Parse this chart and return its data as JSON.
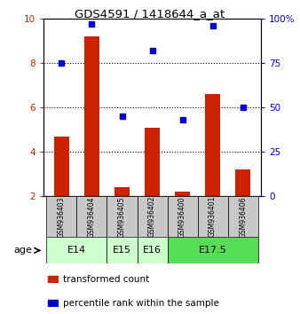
{
  "title": "GDS4591 / 1418644_a_at",
  "samples": [
    "GSM936403",
    "GSM936404",
    "GSM936405",
    "GSM936402",
    "GSM936400",
    "GSM936401",
    "GSM936406"
  ],
  "transformed_count": [
    4.7,
    9.2,
    2.4,
    5.1,
    2.2,
    6.6,
    3.2
  ],
  "percentile_rank": [
    75,
    97,
    45,
    82,
    43,
    96,
    50
  ],
  "ylim_left": [
    2,
    10
  ],
  "ylim_right": [
    0,
    100
  ],
  "yticks_left": [
    2,
    4,
    6,
    8,
    10
  ],
  "yticks_right": [
    0,
    25,
    50,
    75,
    100
  ],
  "ytick_right_labels": [
    "0",
    "25",
    "50",
    "75",
    "100%"
  ],
  "bar_color": "#cc2200",
  "dot_color": "#0000cc",
  "bar_width": 0.5,
  "bg_color_samples": "#c8c8c8",
  "bg_color_e14_e16": "#ccffcc",
  "bg_color_e17": "#55dd55",
  "group_defs": [
    {
      "label": "E14",
      "start": 0,
      "end": 1,
      "color": "#ccffcc"
    },
    {
      "label": "E15",
      "start": 2,
      "end": 2,
      "color": "#ccffcc"
    },
    {
      "label": "E16",
      "start": 3,
      "end": 3,
      "color": "#ccffcc"
    },
    {
      "label": "E17.5",
      "start": 4,
      "end": 6,
      "color": "#55dd55"
    }
  ],
  "grid_yticks": [
    4,
    6,
    8
  ],
  "legend": [
    {
      "color": "#cc2200",
      "label": "transformed count"
    },
    {
      "color": "#0000cc",
      "label": "percentile rank within the sample"
    }
  ]
}
